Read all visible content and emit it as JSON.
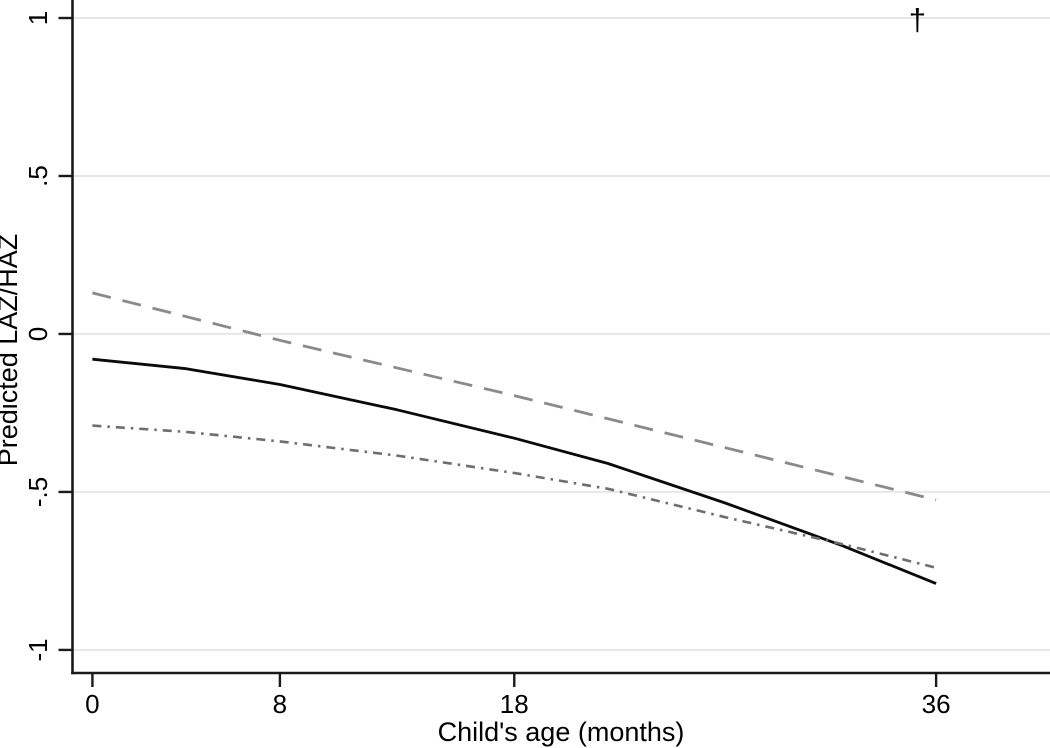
{
  "figure": {
    "background": "#ffffff"
  },
  "chart_data": {
    "type": "line",
    "title": "",
    "xlabel": "Child's age (months)",
    "ylabel": "Predicted LAZ/HAZ",
    "xlim": [
      -0.85,
      40.86
    ],
    "ylim": [
      -1.073,
      1.057
    ],
    "x_ticks": [
      0,
      8,
      18,
      36
    ],
    "x_tick_labels": [
      "0",
      "8",
      "18",
      "36"
    ],
    "y_ticks": [
      1,
      0.5,
      0,
      -0.5,
      -1
    ],
    "y_tick_labels": [
      "1",
      ".5",
      "0",
      "-.5",
      "-1"
    ],
    "grid": "horizontal",
    "legend_position": "none",
    "axis_color": "#1a1a1a",
    "grid_color": "#e7e7e7",
    "annotation": {
      "text": "†",
      "x": 35.2,
      "y": 1.0
    },
    "series": [
      {
        "name": "upper-dashed",
        "line_style": "dashed",
        "color": "#8a8a8a",
        "width": 2.8,
        "dash": "19 12",
        "points": [
          [
            0,
            0.13
          ],
          [
            8,
            -0.02
          ],
          [
            18,
            -0.195
          ],
          [
            27,
            -0.36
          ],
          [
            36,
            -0.525
          ]
        ]
      },
      {
        "name": "middle-solid",
        "line_style": "solid",
        "color": "#0a0a0a",
        "width": 2.8,
        "dash": "",
        "points": [
          [
            0,
            -0.08
          ],
          [
            4,
            -0.11
          ],
          [
            8,
            -0.16
          ],
          [
            13,
            -0.24
          ],
          [
            18,
            -0.33
          ],
          [
            22,
            -0.41
          ],
          [
            27,
            -0.535
          ],
          [
            32,
            -0.67
          ],
          [
            36,
            -0.79
          ]
        ]
      },
      {
        "name": "lower-dash-dot",
        "line_style": "dash-dot",
        "color": "#6e6e6e",
        "width": 2.6,
        "dash": "9 6 2.5 6",
        "points": [
          [
            0,
            -0.29
          ],
          [
            4,
            -0.31
          ],
          [
            8,
            -0.34
          ],
          [
            13,
            -0.385
          ],
          [
            18,
            -0.44
          ],
          [
            22,
            -0.49
          ],
          [
            27,
            -0.58
          ],
          [
            32,
            -0.665
          ],
          [
            36,
            -0.74
          ]
        ]
      }
    ]
  }
}
